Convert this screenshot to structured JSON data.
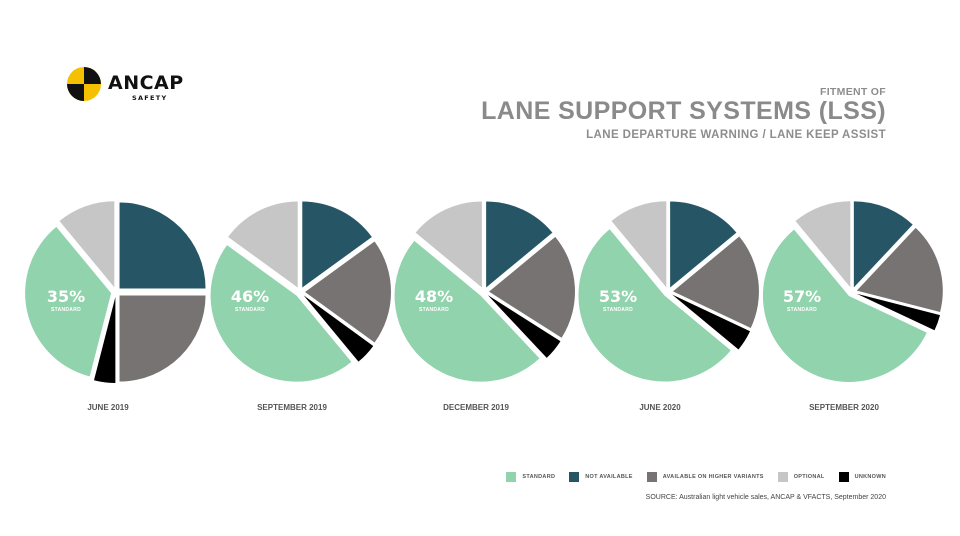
{
  "logo": {
    "text": "ANCAP",
    "subtext": "SAFETY"
  },
  "header": {
    "kicker": "FITMENT OF",
    "title": "LANE SUPPORT SYSTEMS (LSS)",
    "subtitle": "LANE DEPARTURE WARNING / LANE KEEP ASSIST"
  },
  "colors": {
    "standard": "#91d3ac",
    "not_available": "#265566",
    "higher_variants": "#777373",
    "optional": "#c6c6c6",
    "unknown": "#000000"
  },
  "chart_data": [
    {
      "type": "pie",
      "period": "JUNE 2019",
      "label_value": "35%",
      "label_sub": "STANDARD",
      "slices": [
        {
          "category": "not_available",
          "value": 25
        },
        {
          "category": "higher_variants",
          "value": 25
        },
        {
          "category": "unknown",
          "value": 4
        },
        {
          "category": "standard",
          "value": 35
        },
        {
          "category": "optional",
          "value": 11
        }
      ]
    },
    {
      "type": "pie",
      "period": "SEPTEMBER 2019",
      "label_value": "46%",
      "label_sub": "STANDARD",
      "slices": [
        {
          "category": "not_available",
          "value": 15
        },
        {
          "category": "higher_variants",
          "value": 20
        },
        {
          "category": "unknown",
          "value": 4
        },
        {
          "category": "standard",
          "value": 46
        },
        {
          "category": "optional",
          "value": 15
        }
      ]
    },
    {
      "type": "pie",
      "period": "DECEMBER 2019",
      "label_value": "48%",
      "label_sub": "STANDARD",
      "slices": [
        {
          "category": "not_available",
          "value": 14
        },
        {
          "category": "higher_variants",
          "value": 20
        },
        {
          "category": "unknown",
          "value": 4
        },
        {
          "category": "standard",
          "value": 48
        },
        {
          "category": "optional",
          "value": 14
        }
      ]
    },
    {
      "type": "pie",
      "period": "JUNE 2020",
      "label_value": "53%",
      "label_sub": "STANDARD",
      "slices": [
        {
          "category": "not_available",
          "value": 14
        },
        {
          "category": "higher_variants",
          "value": 18
        },
        {
          "category": "unknown",
          "value": 4
        },
        {
          "category": "standard",
          "value": 53
        },
        {
          "category": "optional",
          "value": 11
        }
      ]
    },
    {
      "type": "pie",
      "period": "SEPTEMBER 2020",
      "label_value": "57%",
      "label_sub": "STANDARD",
      "slices": [
        {
          "category": "not_available",
          "value": 12
        },
        {
          "category": "higher_variants",
          "value": 17
        },
        {
          "category": "unknown",
          "value": 3
        },
        {
          "category": "standard",
          "value": 57
        },
        {
          "category": "optional",
          "value": 11
        }
      ]
    }
  ],
  "legend": [
    {
      "category": "standard",
      "label": "STANDARD"
    },
    {
      "category": "not_available",
      "label": "NOT AVAILABLE"
    },
    {
      "category": "higher_variants",
      "label": "AVAILABLE ON HIGHER VARIANTS"
    },
    {
      "category": "optional",
      "label": "OPTIONAL"
    },
    {
      "category": "unknown",
      "label": "UNKNOWN"
    }
  ],
  "source": "SOURCE:  Australian light vehicle sales, ANCAP & VFACTS, September 2020"
}
